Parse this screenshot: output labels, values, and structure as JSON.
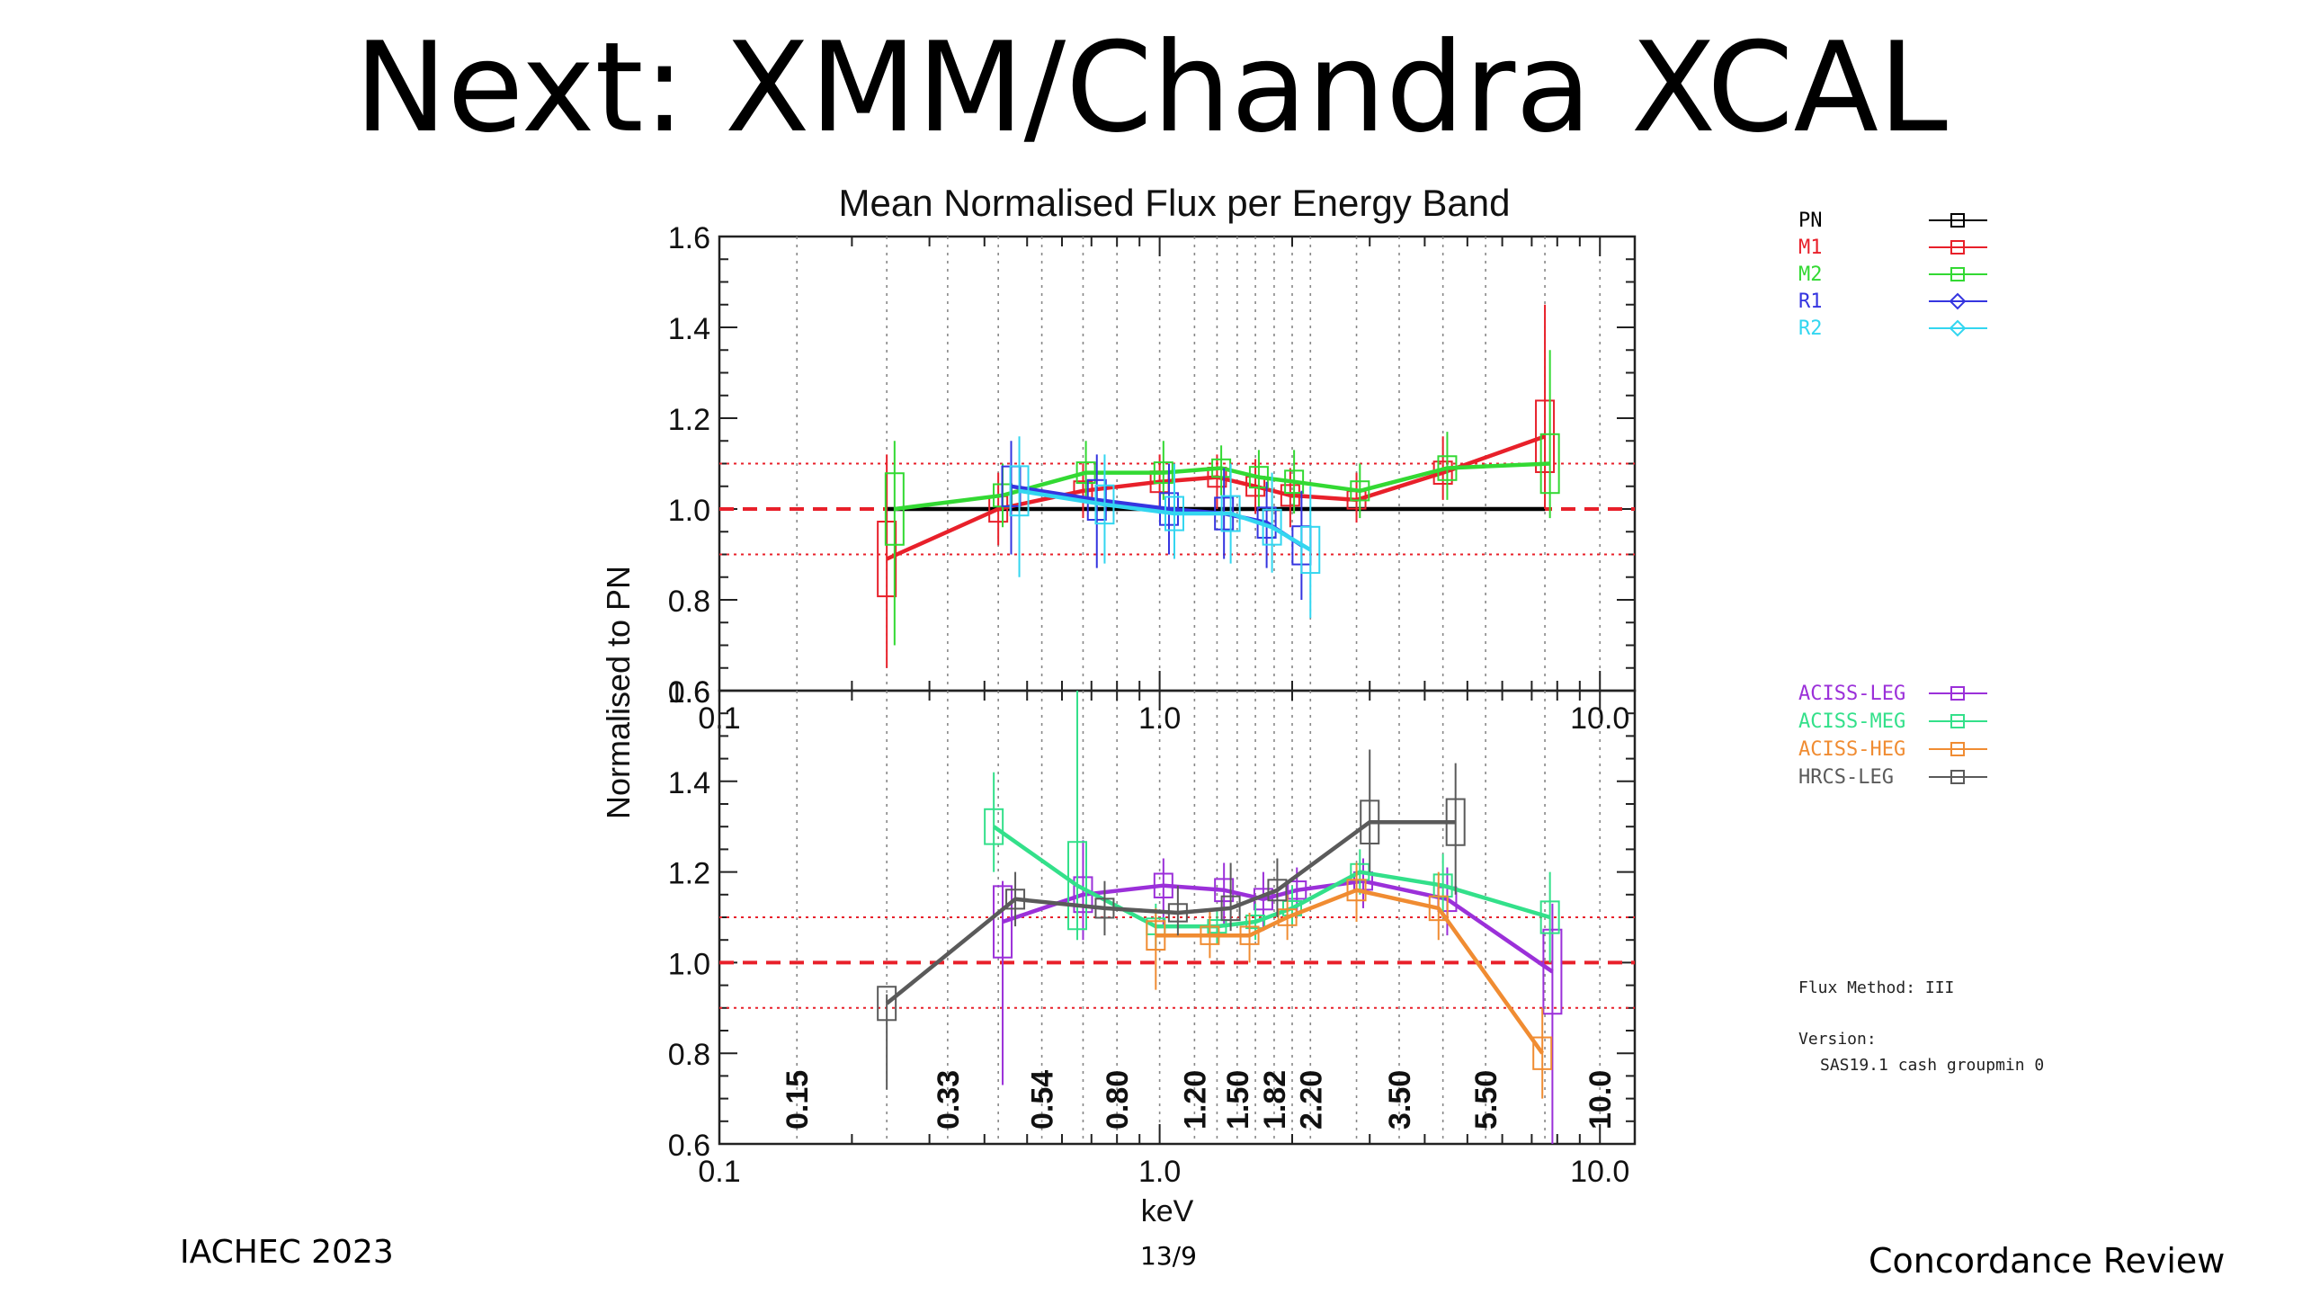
{
  "slide": {
    "title": "Next: XMM/Chandra XCAL",
    "footer_left": "IACHEC 2023",
    "footer_center": "13/9",
    "footer_right": "Concordance Review"
  },
  "chart_data": {
    "type": "line",
    "title": "Mean Normalised Flux per Energy Band",
    "xlabel": "keV",
    "ylabel": "Normalised to PN",
    "xscale": "log",
    "xlim": [
      0.1,
      12
    ],
    "ylim": [
      0.6,
      1.6
    ],
    "x_ticks": [
      "0.1",
      "1.0",
      "10.0"
    ],
    "y_ticks": [
      "0.6",
      "0.8",
      "1.0",
      "1.2",
      "1.4",
      "1.6"
    ],
    "grid": "dotted vertical lines at band edges",
    "reference_lines": {
      "dashed": 1.0,
      "dotted": [
        0.9,
        1.1
      ]
    },
    "panels": [
      {
        "legend_position": "right",
        "series": [
          {
            "name": "PN",
            "color": "#000000",
            "x": [
              0.24,
              7.5
            ],
            "y": [
              1.0,
              1.0
            ]
          },
          {
            "name": "M1",
            "color": "#e8202a",
            "x": [
              0.24,
              0.43,
              0.67,
              1.0,
              1.35,
              1.65,
              1.98,
              2.8,
              4.4,
              7.5
            ],
            "y": [
              0.89,
              1.0,
              1.04,
              1.06,
              1.07,
              1.05,
              1.03,
              1.02,
              1.08,
              1.16
            ],
            "err_low": [
              0.65,
              0.92,
              0.98,
              0.99,
              1.0,
              0.99,
              0.96,
              0.97,
              1.02,
              1.0
            ],
            "err_high": [
              1.12,
              1.08,
              1.1,
              1.12,
              1.12,
              1.11,
              1.09,
              1.08,
              1.16,
              1.45
            ]
          },
          {
            "name": "M2",
            "color": "#33d933",
            "x": [
              0.25,
              0.44,
              0.68,
              1.02,
              1.38,
              1.68,
              2.02,
              2.85,
              4.5,
              7.7
            ],
            "y": [
              1.0,
              1.03,
              1.08,
              1.08,
              1.09,
              1.07,
              1.06,
              1.04,
              1.09,
              1.1
            ],
            "err_low": [
              0.7,
              0.96,
              1.02,
              1.02,
              1.03,
              1.0,
              0.99,
              0.98,
              1.02,
              0.98
            ],
            "err_high": [
              1.15,
              1.1,
              1.15,
              1.15,
              1.14,
              1.13,
              1.13,
              1.1,
              1.17,
              1.35
            ]
          },
          {
            "name": "R1",
            "color": "#3535e0",
            "x": [
              0.46,
              0.72,
              1.05,
              1.4,
              1.75,
              2.1
            ],
            "y": [
              1.05,
              1.02,
              1.0,
              0.99,
              0.97,
              0.92
            ],
            "err_low": [
              0.9,
              0.87,
              0.9,
              0.89,
              0.87,
              0.8
            ],
            "err_high": [
              1.15,
              1.12,
              1.1,
              1.09,
              1.06,
              1.04
            ]
          },
          {
            "name": "R2",
            "color": "#33d6f0",
            "x": [
              0.48,
              0.75,
              1.08,
              1.45,
              1.8,
              2.2
            ],
            "y": [
              1.04,
              1.01,
              0.99,
              0.99,
              0.96,
              0.91
            ],
            "err_low": [
              0.85,
              0.88,
              0.89,
              0.88,
              0.86,
              0.76
            ],
            "err_high": [
              1.16,
              1.12,
              1.1,
              1.1,
              1.08,
              1.05
            ]
          }
        ]
      },
      {
        "legend_position": "right",
        "band_labels": [
          "0.15",
          "0.33",
          "0.54",
          "0.80",
          "1.20",
          "1.50",
          "1.82",
          "2.20",
          "3.50",
          "5.50",
          "10.0"
        ],
        "notes": [
          "Flux Method: III",
          "Version:",
          "SAS19.1 cash groupmin 0"
        ],
        "series": [
          {
            "name": "ACISS-LEG",
            "color": "#9b30d9",
            "x": [
              0.44,
              0.67,
              1.02,
              1.4,
              1.72,
              2.05,
              2.9,
              4.5,
              7.8
            ],
            "y": [
              1.09,
              1.15,
              1.17,
              1.16,
              1.14,
              1.16,
              1.18,
              1.14,
              0.98
            ],
            "err_low": [
              0.73,
              1.05,
              1.08,
              1.08,
              1.07,
              1.1,
              1.12,
              1.06,
              0.6
            ],
            "err_high": [
              1.18,
              1.27,
              1.23,
              1.22,
              1.2,
              1.21,
              1.23,
              1.21,
              1.13
            ]
          },
          {
            "name": "ACISS-MEG",
            "color": "#33e08a",
            "x": [
              0.42,
              0.65,
              0.98,
              1.35,
              1.65,
              2.0,
              2.85,
              4.4,
              7.7
            ],
            "y": [
              1.3,
              1.17,
              1.08,
              1.08,
              1.09,
              1.12,
              1.2,
              1.17,
              1.1
            ],
            "err_low": [
              1.2,
              1.05,
              1.03,
              1.04,
              1.05,
              1.08,
              1.15,
              1.1,
              1.0
            ],
            "err_high": [
              1.42,
              1.6,
              1.13,
              1.12,
              1.13,
              1.17,
              1.25,
              1.24,
              1.2
            ]
          },
          {
            "name": "ACISS-HEG",
            "color": "#f08c32",
            "x": [
              0.98,
              1.3,
              1.6,
              1.95,
              2.8,
              4.3,
              7.4
            ],
            "y": [
              1.06,
              1.06,
              1.06,
              1.1,
              1.16,
              1.12,
              0.8
            ],
            "err_low": [
              0.94,
              1.01,
              1.0,
              1.05,
              1.09,
              1.05,
              0.7
            ],
            "err_high": [
              1.12,
              1.12,
              1.11,
              1.15,
              1.22,
              1.2,
              0.9
            ]
          },
          {
            "name": "HRCS-LEG",
            "color": "#5a5a5a",
            "x": [
              0.24,
              0.47,
              0.75,
              1.1,
              1.45,
              1.85,
              3.0,
              4.7
            ],
            "y": [
              0.91,
              1.14,
              1.12,
              1.11,
              1.12,
              1.16,
              1.31,
              1.31
            ],
            "err_low": [
              0.72,
              1.08,
              1.06,
              1.06,
              1.07,
              1.1,
              1.2,
              1.15
            ],
            "err_high": [
              0.93,
              1.2,
              1.18,
              1.17,
              1.22,
              1.23,
              1.47,
              1.44
            ]
          }
        ]
      }
    ]
  }
}
